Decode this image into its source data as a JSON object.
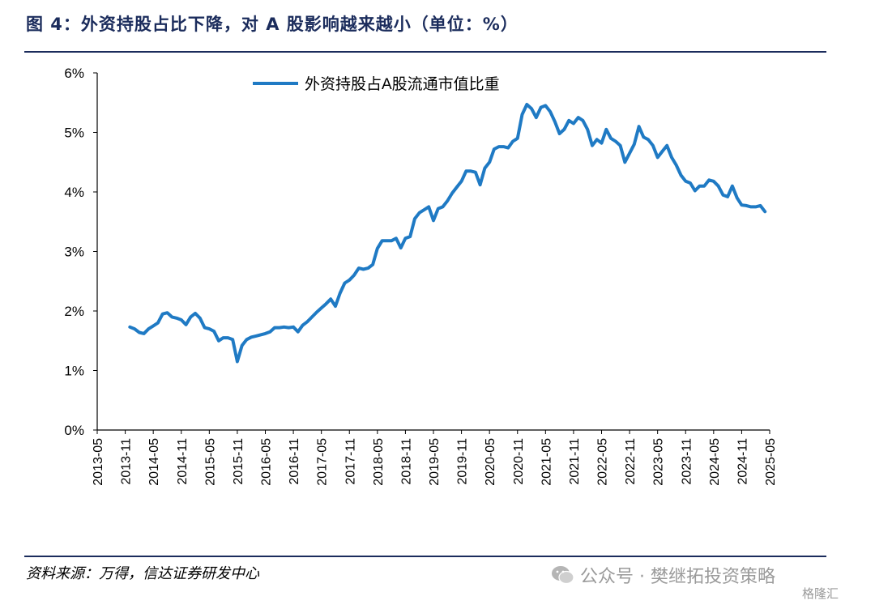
{
  "figure": {
    "title": "图 4：外资持股占比下降，对 A 股影响越来越小（单位：%）",
    "source": "资料来源：万得，信达证券研发中心",
    "watermark": "公众号 · 樊继拓投资策略",
    "watermark_logo": "格隆汇",
    "wechat_icon": "wechat-icon"
  },
  "chart_data": {
    "type": "line",
    "title": "",
    "xlabel": "",
    "ylabel": "",
    "ylim": [
      0,
      6
    ],
    "xlim": [
      "2013-05",
      "2025-05"
    ],
    "y_ticks": [
      "0%",
      "1%",
      "2%",
      "3%",
      "4%",
      "5%",
      "6%"
    ],
    "x_ticks": [
      "2013-05",
      "2013-11",
      "2014-05",
      "2014-11",
      "2015-05",
      "2015-11",
      "2016-05",
      "2016-11",
      "2017-05",
      "2017-11",
      "2018-05",
      "2018-11",
      "2019-05",
      "2019-11",
      "2020-05",
      "2020-11",
      "2021-05",
      "2021-11",
      "2022-05",
      "2022-11",
      "2023-05",
      "2023-11",
      "2024-05",
      "2024-11",
      "2025-05"
    ],
    "grid": false,
    "legend_position": "top-left",
    "series": [
      {
        "name": "外资持股占A股流通市值比重",
        "color": "#1f7ac4",
        "points": [
          [
            "2013-12",
            1.73
          ],
          [
            "2014-01",
            1.7
          ],
          [
            "2014-02",
            1.64
          ],
          [
            "2014-03",
            1.62
          ],
          [
            "2014-04",
            1.7
          ],
          [
            "2014-05",
            1.75
          ],
          [
            "2014-06",
            1.8
          ],
          [
            "2014-07",
            1.95
          ],
          [
            "2014-08",
            1.97
          ],
          [
            "2014-09",
            1.9
          ],
          [
            "2014-10",
            1.88
          ],
          [
            "2014-11",
            1.85
          ],
          [
            "2014-12",
            1.77
          ],
          [
            "2015-01",
            1.9
          ],
          [
            "2015-02",
            1.96
          ],
          [
            "2015-03",
            1.88
          ],
          [
            "2015-04",
            1.72
          ],
          [
            "2015-05",
            1.7
          ],
          [
            "2015-06",
            1.66
          ],
          [
            "2015-07",
            1.5
          ],
          [
            "2015-08",
            1.55
          ],
          [
            "2015-09",
            1.55
          ],
          [
            "2015-10",
            1.52
          ],
          [
            "2015-11",
            1.15
          ],
          [
            "2015-12",
            1.42
          ],
          [
            "2016-01",
            1.52
          ],
          [
            "2016-02",
            1.56
          ],
          [
            "2016-03",
            1.58
          ],
          [
            "2016-04",
            1.6
          ],
          [
            "2016-05",
            1.62
          ],
          [
            "2016-06",
            1.65
          ],
          [
            "2016-07",
            1.72
          ],
          [
            "2016-08",
            1.72
          ],
          [
            "2016-09",
            1.73
          ],
          [
            "2016-10",
            1.72
          ],
          [
            "2016-11",
            1.73
          ],
          [
            "2016-12",
            1.65
          ],
          [
            "2017-01",
            1.76
          ],
          [
            "2017-02",
            1.82
          ],
          [
            "2017-03",
            1.9
          ],
          [
            "2017-04",
            1.98
          ],
          [
            "2017-05",
            2.05
          ],
          [
            "2017-06",
            2.12
          ],
          [
            "2017-07",
            2.2
          ],
          [
            "2017-08",
            2.08
          ],
          [
            "2017-09",
            2.3
          ],
          [
            "2017-10",
            2.47
          ],
          [
            "2017-11",
            2.52
          ],
          [
            "2017-12",
            2.6
          ],
          [
            "2018-01",
            2.72
          ],
          [
            "2018-02",
            2.7
          ],
          [
            "2018-03",
            2.72
          ],
          [
            "2018-04",
            2.78
          ],
          [
            "2018-05",
            3.05
          ],
          [
            "2018-06",
            3.18
          ],
          [
            "2018-07",
            3.18
          ],
          [
            "2018-08",
            3.18
          ],
          [
            "2018-09",
            3.22
          ],
          [
            "2018-10",
            3.06
          ],
          [
            "2018-11",
            3.22
          ],
          [
            "2018-12",
            3.25
          ],
          [
            "2019-01",
            3.55
          ],
          [
            "2019-02",
            3.65
          ],
          [
            "2019-03",
            3.7
          ],
          [
            "2019-04",
            3.75
          ],
          [
            "2019-05",
            3.52
          ],
          [
            "2019-06",
            3.72
          ],
          [
            "2019-07",
            3.75
          ],
          [
            "2019-08",
            3.85
          ],
          [
            "2019-09",
            3.98
          ],
          [
            "2019-10",
            4.08
          ],
          [
            "2019-11",
            4.18
          ],
          [
            "2019-12",
            4.35
          ],
          [
            "2020-01",
            4.35
          ],
          [
            "2020-02",
            4.33
          ],
          [
            "2020-03",
            4.12
          ],
          [
            "2020-04",
            4.4
          ],
          [
            "2020-05",
            4.5
          ],
          [
            "2020-06",
            4.72
          ],
          [
            "2020-07",
            4.76
          ],
          [
            "2020-08",
            4.76
          ],
          [
            "2020-09",
            4.74
          ],
          [
            "2020-10",
            4.85
          ],
          [
            "2020-11",
            4.9
          ],
          [
            "2020-12",
            5.3
          ],
          [
            "2021-01",
            5.47
          ],
          [
            "2021-02",
            5.4
          ],
          [
            "2021-03",
            5.25
          ],
          [
            "2021-04",
            5.42
          ],
          [
            "2021-05",
            5.45
          ],
          [
            "2021-06",
            5.35
          ],
          [
            "2021-07",
            5.18
          ],
          [
            "2021-08",
            4.98
          ],
          [
            "2021-09",
            5.05
          ],
          [
            "2021-10",
            5.2
          ],
          [
            "2021-11",
            5.15
          ],
          [
            "2021-12",
            5.25
          ],
          [
            "2022-01",
            5.2
          ],
          [
            "2022-02",
            5.05
          ],
          [
            "2022-03",
            4.78
          ],
          [
            "2022-04",
            4.88
          ],
          [
            "2022-05",
            4.82
          ],
          [
            "2022-06",
            5.05
          ],
          [
            "2022-07",
            4.9
          ],
          [
            "2022-08",
            4.85
          ],
          [
            "2022-09",
            4.78
          ],
          [
            "2022-10",
            4.5
          ],
          [
            "2022-11",
            4.65
          ],
          [
            "2022-12",
            4.8
          ],
          [
            "2023-01",
            5.1
          ],
          [
            "2023-02",
            4.92
          ],
          [
            "2023-03",
            4.88
          ],
          [
            "2023-04",
            4.78
          ],
          [
            "2023-05",
            4.58
          ],
          [
            "2023-06",
            4.68
          ],
          [
            "2023-07",
            4.78
          ],
          [
            "2023-08",
            4.58
          ],
          [
            "2023-09",
            4.45
          ],
          [
            "2023-10",
            4.28
          ],
          [
            "2023-11",
            4.18
          ],
          [
            "2023-12",
            4.15
          ],
          [
            "2024-01",
            4.02
          ],
          [
            "2024-02",
            4.1
          ],
          [
            "2024-03",
            4.1
          ],
          [
            "2024-04",
            4.2
          ],
          [
            "2024-05",
            4.18
          ],
          [
            "2024-06",
            4.1
          ],
          [
            "2024-07",
            3.95
          ],
          [
            "2024-08",
            3.92
          ],
          [
            "2024-09",
            4.1
          ],
          [
            "2024-10",
            3.9
          ],
          [
            "2024-11",
            3.78
          ],
          [
            "2024-12",
            3.77
          ],
          [
            "2025-01",
            3.75
          ],
          [
            "2025-02",
            3.75
          ],
          [
            "2025-03",
            3.77
          ],
          [
            "2025-04",
            3.67
          ]
        ]
      }
    ]
  }
}
